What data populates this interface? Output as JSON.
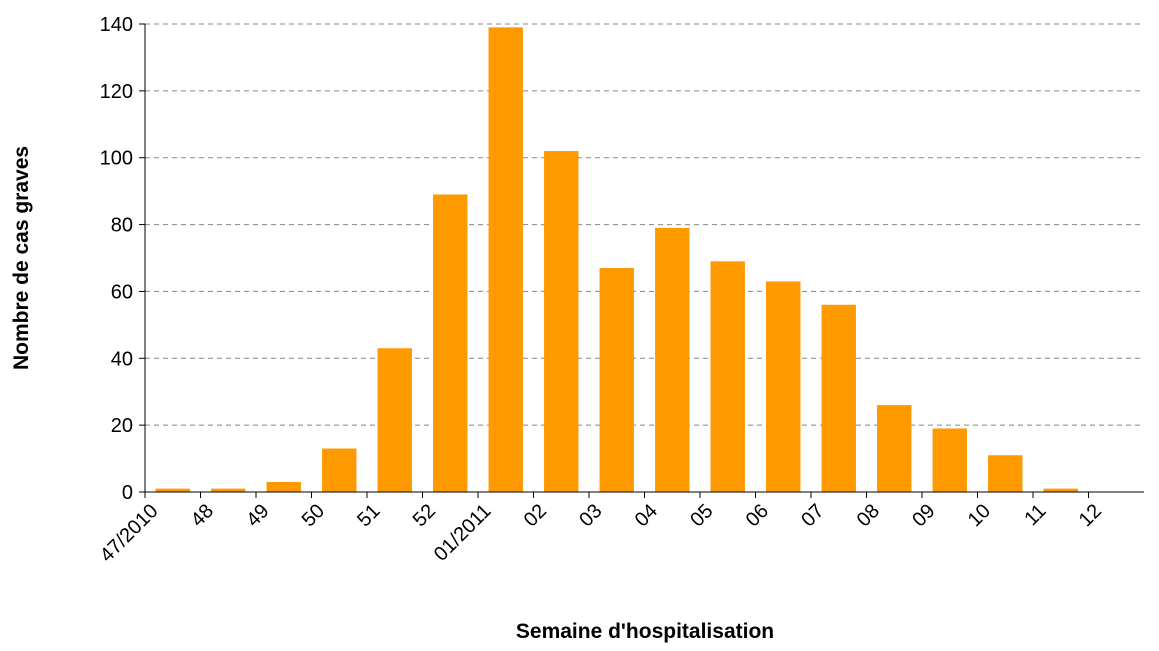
{
  "chart_data": {
    "type": "bar",
    "x_label": "Semaine d'hospitalisation",
    "y_label": "Nombre de cas graves",
    "categories": [
      "47/2010",
      "48",
      "49",
      "50",
      "51",
      "52",
      "01/2011",
      "02",
      "03",
      "04",
      "05",
      "06",
      "07",
      "08",
      "09",
      "10",
      "11",
      "12"
    ],
    "values": [
      1,
      1,
      3,
      13,
      43,
      89,
      139,
      102,
      67,
      79,
      69,
      63,
      56,
      26,
      19,
      11,
      1,
      0
    ],
    "color": "#ff9900",
    "ylim": [
      0,
      140
    ],
    "yticks": [
      0,
      20,
      40,
      60,
      80,
      100,
      120,
      140
    ],
    "grid": true
  }
}
